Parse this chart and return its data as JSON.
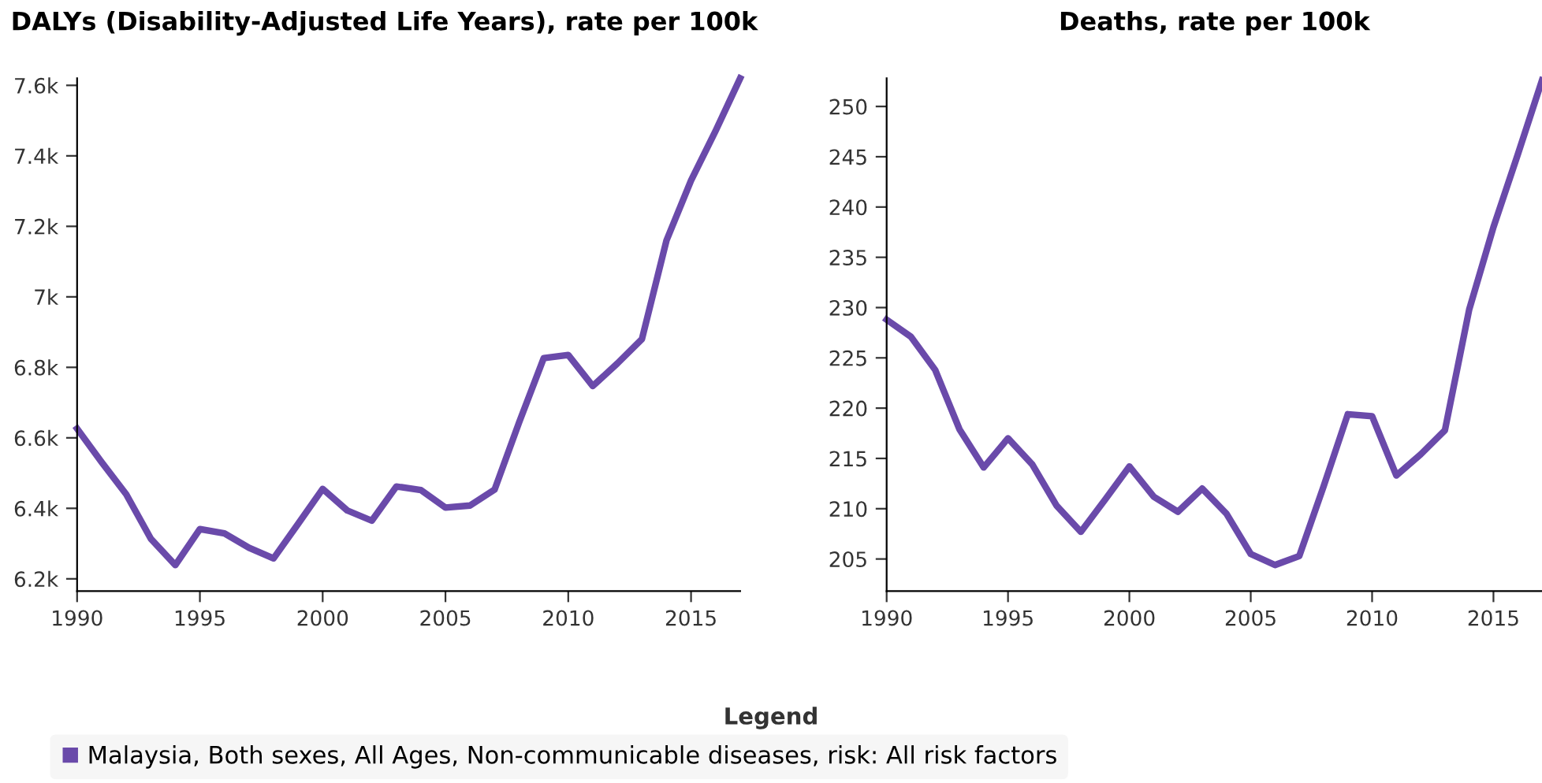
{
  "chart_data": [
    {
      "type": "line",
      "title": "DALYs (Disability-Adjusted Life Years), rate per 100k",
      "legend": "bottom",
      "legend_title": "Legend",
      "grid": false,
      "marker": "none",
      "line_style": "solid",
      "x": [
        1990,
        1991,
        1992,
        1993,
        1994,
        1995,
        1996,
        1997,
        1998,
        1999,
        2000,
        2001,
        2002,
        2003,
        2004,
        2005,
        2006,
        2007,
        2008,
        2009,
        2010,
        2011,
        2012,
        2013,
        2014,
        2015,
        2016,
        2017
      ],
      "xlim": [
        1990,
        2017
      ],
      "xticks": [
        1990,
        1995,
        2000,
        2005,
        2010,
        2015
      ],
      "ylim": [
        6165,
        7620
      ],
      "yticks": [
        {
          "value": 6200,
          "label": "6.2k"
        },
        {
          "value": 6400,
          "label": "6.4k"
        },
        {
          "value": 6600,
          "label": "6.6k"
        },
        {
          "value": 6800,
          "label": "6.8k"
        },
        {
          "value": 7000,
          "label": "7k"
        },
        {
          "value": 7200,
          "label": "7.2k"
        },
        {
          "value": 7400,
          "label": "7.4k"
        },
        {
          "value": 7600,
          "label": "7.6k"
        }
      ],
      "series": [
        {
          "name": "Malaysia, Both sexes, All Ages, Non-communicable diseases, risk: All risk factors",
          "color": "#6a4aaa",
          "values": [
            6626,
            6531,
            6440,
            6314,
            6239,
            6341,
            6329,
            6288,
            6258,
            6356,
            6455,
            6394,
            6365,
            6462,
            6452,
            6402,
            6408,
            6453,
            6644,
            6826,
            6835,
            6747,
            6811,
            6880,
            7160,
            7330,
            7471,
            7620
          ]
        }
      ]
    },
    {
      "type": "line",
      "title": "Deaths, rate per 100k",
      "grid": false,
      "marker": "none",
      "line_style": "solid",
      "x": [
        1990,
        1991,
        1992,
        1993,
        1994,
        1995,
        1996,
        1997,
        1998,
        1999,
        2000,
        2001,
        2002,
        2003,
        2004,
        2005,
        2006,
        2007,
        2008,
        2009,
        2010,
        2011,
        2012,
        2013,
        2014,
        2015,
        2016,
        2017
      ],
      "xlim": [
        1990,
        2017
      ],
      "xticks": [
        1990,
        1995,
        2000,
        2005,
        2010,
        2015
      ],
      "ylim": [
        201.8,
        252.8
      ],
      "yticks": [
        205,
        210,
        215,
        220,
        225,
        230,
        235,
        240,
        245,
        250
      ],
      "series": [
        {
          "color": "#6a4aaa",
          "values": [
            228.8,
            227.1,
            223.8,
            217.9,
            214.1,
            217.0,
            214.4,
            210.3,
            207.7,
            210.9,
            214.2,
            211.2,
            209.7,
            212.0,
            209.5,
            205.5,
            204.4,
            205.3,
            212.2,
            219.4,
            219.2,
            213.3,
            215.4,
            217.8,
            229.8,
            238.0,
            245.2,
            252.6
          ]
        }
      ]
    }
  ]
}
